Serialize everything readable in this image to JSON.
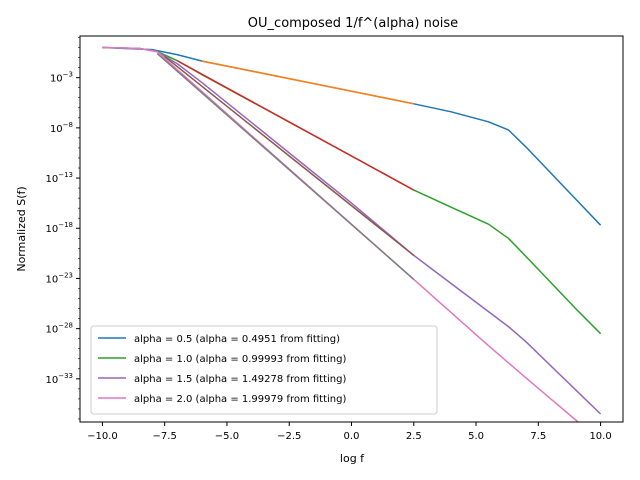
{
  "chart_data": {
    "type": "line",
    "title": "OU_composed 1/f^(alpha) noise",
    "xlabel": "log f",
    "ylabel": "Normalized S(f)",
    "xlim": [
      -10.9,
      10.9
    ],
    "ylim_log10": [
      -37.3,
      1.15
    ],
    "y_scale": "log",
    "x_ticks": [
      -10.0,
      -7.5,
      -5.0,
      -2.5,
      0.0,
      2.5,
      5.0,
      7.5,
      10.0
    ],
    "x_tick_labels": [
      "−10.0",
      "−7.5",
      "−5.0",
      "−2.5",
      "0.0",
      "2.5",
      "5.0",
      "7.5",
      "10.0"
    ],
    "y_ticks_log10": [
      -3,
      -8,
      -13,
      -18,
      -23,
      -28,
      -33
    ],
    "y_tick_labels": [
      {
        "base": "10",
        "exp": "−3"
      },
      {
        "base": "10",
        "exp": "−8"
      },
      {
        "base": "10",
        "exp": "−13"
      },
      {
        "base": "10",
        "exp": "−18"
      },
      {
        "base": "10",
        "exp": "−23"
      },
      {
        "base": "10",
        "exp": "−28"
      },
      {
        "base": "10",
        "exp": "−33"
      }
    ],
    "legend_position": "lower-left",
    "series": [
      {
        "name": "alpha = 0.5 (alpha = 0.4951 from fitting)",
        "color": "#1f77b4",
        "x": [
          -10,
          -8.0,
          -7.0,
          -6.0,
          -4.0,
          -2.0,
          0.0,
          2.5,
          4.0,
          5.5,
          6.3,
          7.0,
          8.0,
          9.0,
          10.0
        ],
        "y_log10": [
          0.0,
          -0.2,
          -0.7,
          -1.35,
          -2.35,
          -3.35,
          -4.35,
          -5.6,
          -6.4,
          -7.4,
          -8.2,
          -9.9,
          -12.5,
          -15.1,
          -17.7
        ]
      },
      {
        "name": "alpha = 1.0 (alpha = 0.99993 from fitting)",
        "color": "#2ca02c",
        "x": [
          -10,
          -8.5,
          -7.8,
          -7.0,
          -6.0,
          -4.0,
          -2.0,
          0.0,
          2.5,
          4.0,
          5.5,
          6.3,
          7.0,
          8.0,
          9.0,
          10.0
        ],
        "y_log10": [
          0.0,
          -0.1,
          -0.4,
          -1.3,
          -2.7,
          -5.4,
          -8.1,
          -10.8,
          -14.2,
          -15.9,
          -17.6,
          -19.0,
          -20.8,
          -23.4,
          -26.0,
          -28.5
        ]
      },
      {
        "name": "alpha = 1.5 (alpha = 1.49278 from fitting)",
        "color": "#9467bd",
        "x": [
          -10,
          -8.5,
          -7.8,
          -7.0,
          -6.0,
          -4.0,
          -2.0,
          0.0,
          2.5,
          4.0,
          5.5,
          6.3,
          7.0,
          8.0,
          9.0,
          10.0
        ],
        "y_log10": [
          0.0,
          -0.1,
          -0.4,
          -1.6,
          -3.5,
          -7.5,
          -11.5,
          -15.5,
          -20.7,
          -23.5,
          -26.3,
          -27.8,
          -29.3,
          -31.7,
          -34.1,
          -36.5
        ]
      },
      {
        "name": "alpha = 2.0 (alpha = 1.99979 from fitting)",
        "color": "#e377c2",
        "x": [
          -10,
          -8.5,
          -7.8,
          -7.0,
          -6.0,
          -4.0,
          -2.0,
          0.0,
          2.5,
          4.0,
          5.5,
          6.3,
          7.0,
          8.0,
          9.0,
          10.0
        ],
        "y_log10": [
          0.0,
          -0.1,
          -0.4,
          -2.2,
          -4.4,
          -8.8,
          -13.2,
          -17.6,
          -23.1,
          -26.4,
          -29.7,
          -31.4,
          -32.9,
          -35.0,
          -37.1,
          -39.2
        ]
      },
      {
        "color": "#ff7f0e",
        "x": [
          -6.0,
          2.5
        ],
        "y_log10": [
          -1.35,
          -5.6
        ]
      },
      {
        "color": "#d62728",
        "x": [
          -7.0,
          2.5
        ],
        "y_log10": [
          -1.3,
          -14.2
        ]
      },
      {
        "color": "#8c564b",
        "x": [
          -7.5,
          2.5
        ],
        "y_log10": [
          -0.9,
          -20.7
        ]
      },
      {
        "color": "#7f7f7f",
        "x": [
          -7.8,
          2.5
        ],
        "y_log10": [
          -0.6,
          -23.1
        ]
      }
    ]
  }
}
